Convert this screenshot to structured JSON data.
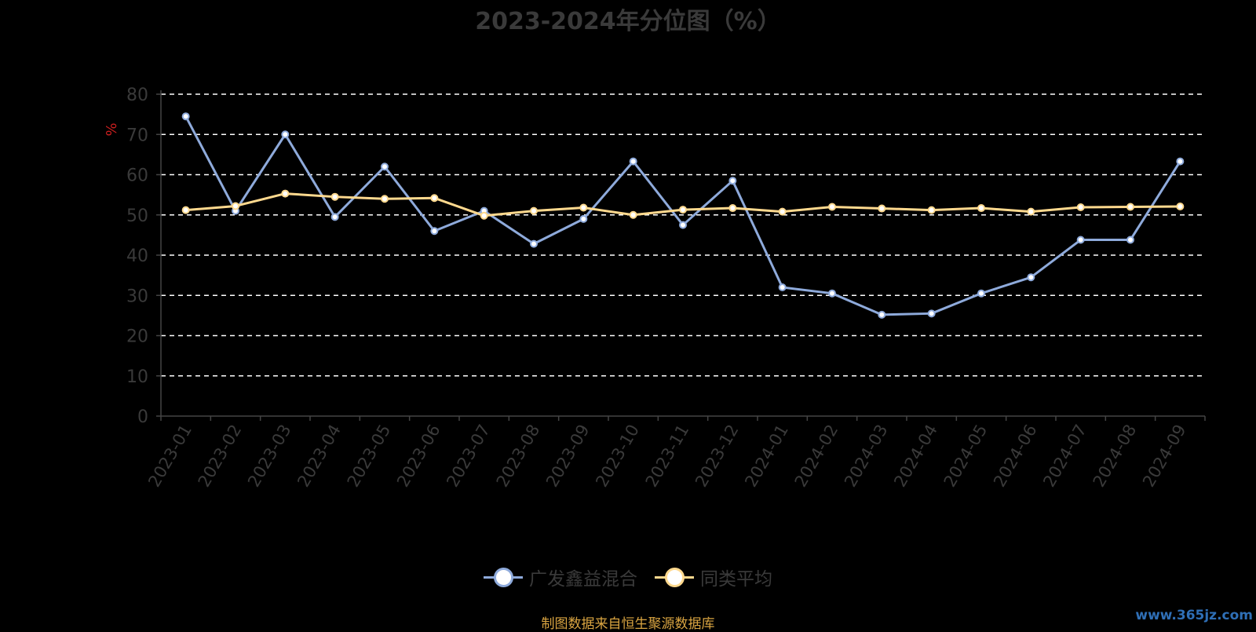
{
  "chart_data": {
    "type": "line",
    "title": "2023-2024年分位图（%）",
    "ylabel": "%",
    "ylim": [
      0,
      80
    ],
    "yticks": [
      0,
      10,
      20,
      30,
      40,
      50,
      60,
      70,
      80
    ],
    "grid": true,
    "categories": [
      "2023-01",
      "2023-02",
      "2023-03",
      "2023-04",
      "2023-05",
      "2023-06",
      "2023-07",
      "2023-08",
      "2023-09",
      "2023-10",
      "2023-11",
      "2023-12",
      "2024-01",
      "2024-02",
      "2024-03",
      "2024-04",
      "2024-05",
      "2024-06",
      "2024-07",
      "2024-08",
      "2024-09"
    ],
    "series": [
      {
        "name": "广发鑫益混合",
        "color": "#8eaadb",
        "values": [
          74.5,
          51,
          70,
          49.5,
          62,
          46,
          51,
          42.8,
          49,
          63.3,
          47.5,
          58.5,
          32,
          30.5,
          25.2,
          25.5,
          30.5,
          34.5,
          43.8,
          43.8,
          63.3
        ]
      },
      {
        "name": "同类平均",
        "color": "#ffd98e",
        "values": [
          51.2,
          52.2,
          55.3,
          54.5,
          54,
          54.2,
          49.8,
          51,
          51.8,
          50,
          51.3,
          51.7,
          50.8,
          52,
          51.6,
          51.2,
          51.7,
          50.8,
          51.9,
          52,
          52.1
        ]
      }
    ],
    "legend_position": "bottom"
  },
  "footer": {
    "source": "制图数据来自恒生聚源数据库",
    "watermark": "www.365jz.com"
  }
}
